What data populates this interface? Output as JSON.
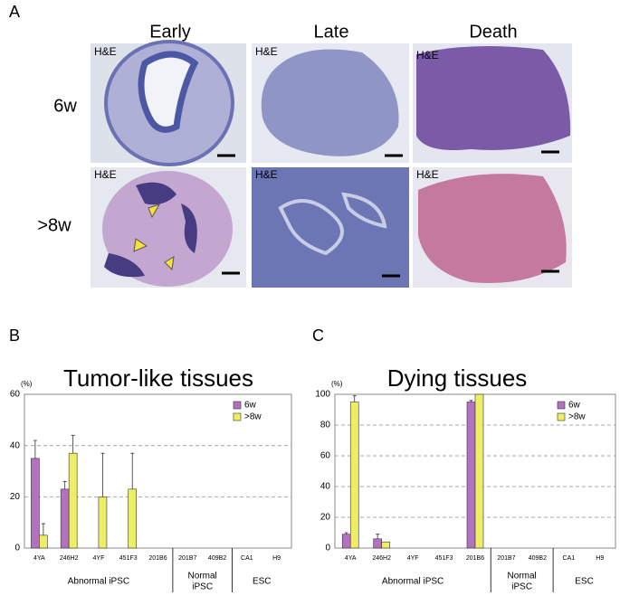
{
  "panel_a": {
    "label": "A",
    "columns": [
      "Early",
      "Late",
      "Death"
    ],
    "rows": [
      "6w",
      ">8w"
    ],
    "stains": [
      [
        "H&E",
        "H&E",
        "H&E"
      ],
      [
        "H&E",
        "H&E",
        "H&E"
      ]
    ]
  },
  "chart_data": [
    {
      "type": "bar",
      "panel_label": "B",
      "title": "Tumor-like tissues",
      "y_label": "(%)",
      "categories": [
        "4YA",
        "246H2",
        "4YF",
        "451F3",
        "201B6",
        "201B7",
        "409B2",
        "CA1",
        "H9"
      ],
      "groups": [
        {
          "lines": [
            "Abnormal iPSC"
          ],
          "count": 5
        },
        {
          "lines": [
            "Normal",
            "iPSC"
          ],
          "count": 2
        },
        {
          "lines": [
            "ESC"
          ],
          "count": 2
        }
      ],
      "series": [
        {
          "name": "6w",
          "color": "#b372bd",
          "values": [
            35,
            23,
            0,
            0,
            0,
            0,
            0,
            0,
            0
          ],
          "errors": [
            7,
            3,
            null,
            null,
            null,
            null,
            null,
            null,
            null
          ]
        },
        {
          "name": ">8w",
          "color": "#eeee66",
          "values": [
            5,
            37,
            20,
            23,
            0,
            0,
            0,
            0,
            0
          ],
          "errors": [
            4.5,
            7,
            17,
            14,
            null,
            null,
            null,
            null,
            null
          ]
        }
      ],
      "ylim": [
        0,
        60
      ],
      "yticks": [
        0,
        20,
        40,
        60
      ],
      "grid": true,
      "legend": "top-right"
    },
    {
      "type": "bar",
      "panel_label": "C",
      "title": "Dying tissues",
      "y_label": "(%)",
      "categories": [
        "4YA",
        "246H2",
        "4YF",
        "451F3",
        "201B6",
        "201B7",
        "409B2",
        "CA1",
        "H9"
      ],
      "groups": [
        {
          "lines": [
            "Abnormal iPSC"
          ],
          "count": 5
        },
        {
          "lines": [
            "Normal",
            "iPSC"
          ],
          "count": 2
        },
        {
          "lines": [
            "ESC"
          ],
          "count": 2
        }
      ],
      "series": [
        {
          "name": "6w",
          "color": "#b372bd",
          "values": [
            9,
            6,
            0,
            0,
            95,
            0,
            0,
            0,
            0
          ],
          "errors": [
            1,
            3,
            null,
            null,
            1,
            null,
            null,
            null,
            null
          ]
        },
        {
          "name": ">8w",
          "color": "#eeee66",
          "values": [
            95,
            4,
            0,
            0,
            100,
            0,
            0,
            0,
            0
          ],
          "errors": [
            4,
            null,
            null,
            null,
            null,
            null,
            null,
            null,
            null
          ]
        }
      ],
      "ylim": [
        0,
        100
      ],
      "yticks": [
        0,
        20,
        40,
        60,
        80,
        100
      ],
      "grid": true,
      "legend": "top-right"
    }
  ]
}
